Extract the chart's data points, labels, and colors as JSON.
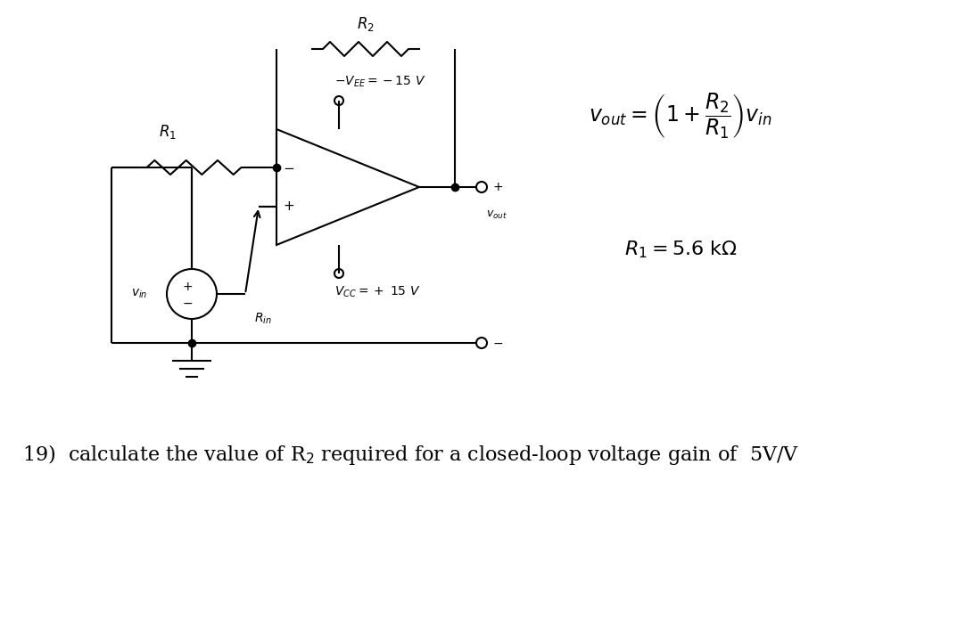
{
  "bg_color": "#ffffff",
  "line_color": "#000000",
  "fig_width": 10.73,
  "fig_height": 7.23,
  "dpi": 100
}
